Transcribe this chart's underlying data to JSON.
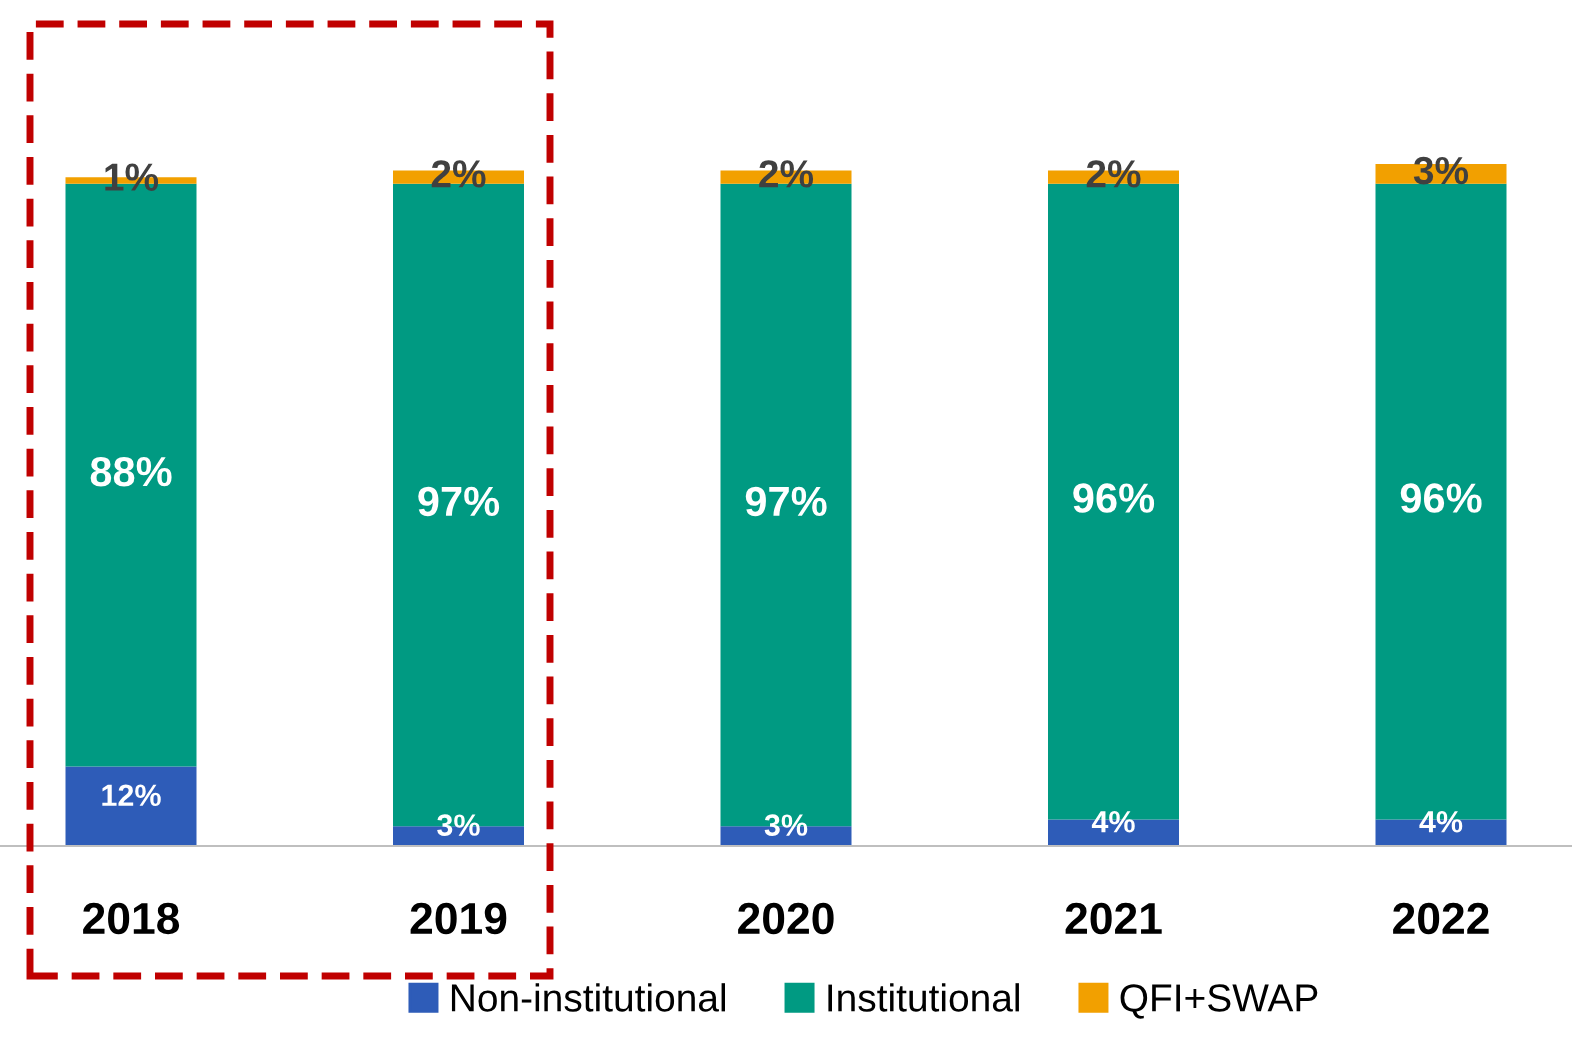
{
  "chart_data": {
    "type": "bar",
    "stacked": true,
    "categories": [
      "2018",
      "2019",
      "2020",
      "2021",
      "2022"
    ],
    "series": [
      {
        "name": "Non-institutional",
        "color": "#2e5cb8",
        "values": [
          12,
          3,
          3,
          4,
          4
        ],
        "value_labels": [
          "12%",
          "3%",
          "3%",
          "4%",
          "4%"
        ]
      },
      {
        "name": "Institutional",
        "color": "#009a82",
        "values": [
          88,
          97,
          97,
          96,
          96
        ],
        "value_labels": [
          "88%",
          "97%",
          "97%",
          "96%",
          "96%"
        ]
      },
      {
        "name": "QFI+SWAP",
        "color": "#f2a000",
        "values": [
          1,
          2,
          2,
          2,
          3
        ],
        "value_labels": [
          "1%",
          "2%",
          "2%",
          "2%",
          "3%"
        ]
      }
    ],
    "legend": "bottom",
    "grid": false
  }
}
